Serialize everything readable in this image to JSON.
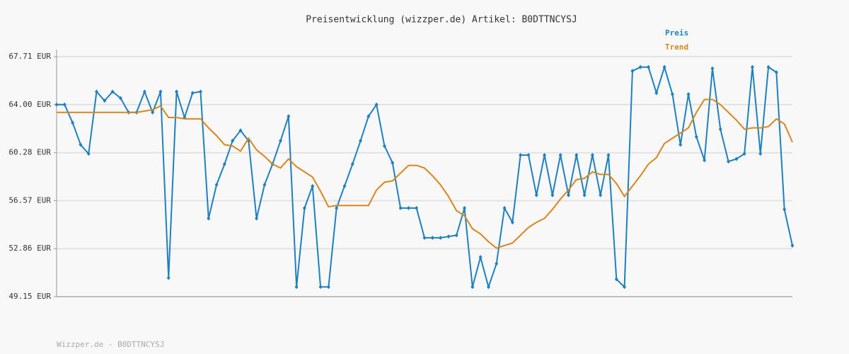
{
  "chart_data": {
    "type": "line",
    "title": "Preisentwicklung (wizzper.de) Artikel: B0DTTNCYSJ",
    "footer": "Wizzper.de - B0DTTNCYSJ",
    "ylim": [
      49.15,
      67.71
    ],
    "yticks": [
      {
        "value": 49.15,
        "label": "49.15 EUR"
      },
      {
        "value": 52.86,
        "label": "52.86 EUR"
      },
      {
        "value": 56.57,
        "label": "56.57 EUR"
      },
      {
        "value": 60.28,
        "label": "60.28 EUR"
      },
      {
        "value": 64.0,
        "label": "64.00 EUR"
      },
      {
        "value": 67.71,
        "label": "67.71 EUR"
      }
    ],
    "grid": true,
    "legend": "top-right",
    "series": [
      {
        "name": "Preis",
        "color": "#1f80c0",
        "markers": true,
        "values": [
          64.0,
          64.0,
          62.6,
          60.9,
          60.2,
          65.0,
          64.3,
          65.0,
          64.5,
          63.4,
          63.4,
          65.0,
          63.4,
          65.0,
          50.6,
          65.0,
          63.0,
          64.9,
          65.0,
          55.2,
          57.8,
          59.4,
          61.2,
          62.0,
          61.2,
          55.2,
          57.8,
          59.4,
          61.2,
          63.1,
          49.9,
          56.0,
          57.7,
          49.9,
          49.9,
          56.0,
          57.7,
          59.4,
          61.2,
          63.1,
          64.0,
          60.8,
          59.5,
          56.0,
          56.0,
          56.0,
          53.7,
          53.7,
          53.7,
          53.8,
          53.9,
          56.0,
          49.9,
          52.2,
          49.9,
          51.7,
          56.0,
          54.9,
          60.1,
          60.1,
          57.0,
          60.1,
          57.0,
          60.1,
          57.0,
          60.1,
          57.0,
          60.1,
          57.0,
          60.1,
          50.5,
          49.9,
          66.6,
          66.9,
          66.9,
          64.9,
          66.9,
          64.8,
          60.9,
          64.8,
          61.5,
          59.7,
          66.8,
          62.1,
          59.6,
          59.8,
          60.2,
          66.9,
          60.2,
          66.9,
          66.5,
          55.9,
          53.1
        ]
      },
      {
        "name": "Trend",
        "color": "#d9861c",
        "markers": false,
        "values": [
          63.4,
          63.4,
          63.4,
          63.4,
          63.4,
          63.4,
          63.4,
          63.4,
          63.4,
          63.4,
          63.4,
          63.5,
          63.6,
          63.9,
          63.0,
          63.0,
          62.9,
          62.9,
          62.9,
          62.2,
          61.6,
          60.9,
          60.8,
          60.4,
          61.4,
          60.5,
          60.0,
          59.4,
          59.1,
          59.8,
          59.2,
          58.8,
          58.4,
          57.3,
          56.1,
          56.2,
          56.2,
          56.2,
          56.2,
          56.2,
          57.4,
          58.0,
          58.1,
          58.7,
          59.3,
          59.3,
          59.1,
          58.5,
          57.8,
          56.9,
          55.8,
          55.4,
          54.4,
          54.0,
          53.4,
          52.9,
          53.1,
          53.3,
          53.9,
          54.5,
          54.9,
          55.2,
          55.9,
          56.7,
          57.4,
          58.2,
          58.3,
          58.8,
          58.6,
          58.6,
          57.9,
          56.9,
          57.7,
          58.5,
          59.4,
          59.9,
          61.0,
          61.4,
          61.8,
          62.2,
          63.4,
          64.4,
          64.4,
          64.0,
          63.4,
          62.8,
          62.1,
          62.2,
          62.2,
          62.3,
          62.9,
          62.5,
          61.1
        ]
      }
    ]
  }
}
